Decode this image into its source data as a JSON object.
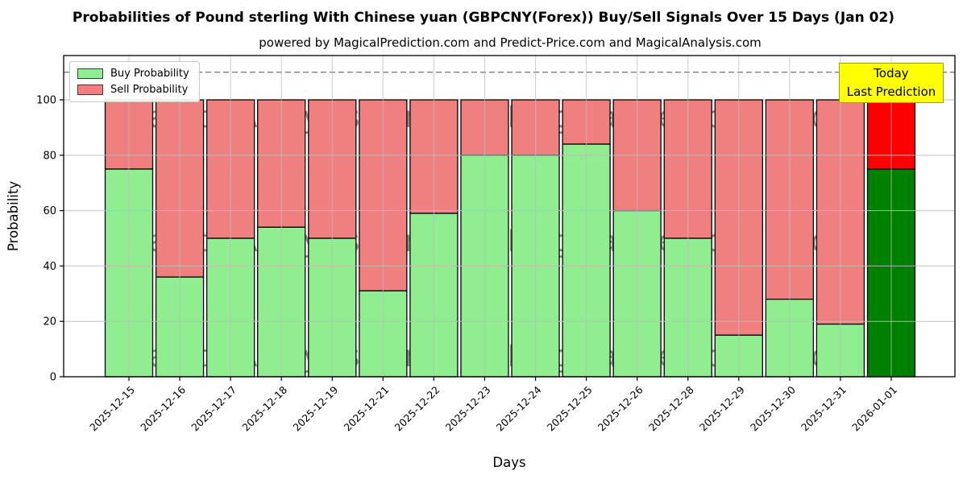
{
  "header": {
    "title": "Probabilities of Pound sterling With Chinese yuan (GBPCNY(Forex)) Buy/Sell Signals Over 15 Days (Jan 02)",
    "subtitle": "powered by MagicalPrediction.com and Predict-Price.com and MagicalAnalysis.com"
  },
  "legend": {
    "items": [
      {
        "label": "Buy Probability",
        "color": "#90ee90"
      },
      {
        "label": "Sell Probability",
        "color": "#f08080"
      }
    ]
  },
  "annotation": {
    "line1": "Today",
    "line2": "Last Prediction",
    "bg": "#ffff00",
    "border": "#ab9b00",
    "text_color": "#000000"
  },
  "watermarks": {
    "left_text": "MagicalAnalysis.com",
    "right_text": "MagicalPrediction.com",
    "rows": 3,
    "color": "#dfb8b8"
  },
  "chart_data": {
    "type": "bar",
    "stacked": true,
    "title": "Probabilities of Pound sterling With Chinese yuan (GBPCNY(Forex)) Buy/Sell Signals Over 15 Days (Jan 02)",
    "xlabel": "Days",
    "ylabel": "Probability",
    "ylim": [
      0,
      116
    ],
    "y_ticks": [
      0,
      20,
      40,
      60,
      80,
      100
    ],
    "dashed_line_y": 110,
    "grid": true,
    "legend_position": "upper left",
    "categories": [
      "2025-12-15",
      "2025-12-16",
      "2025-12-17",
      "2025-12-18",
      "2025-12-19",
      "2025-12-21",
      "2025-12-22",
      "2025-12-23",
      "2025-12-24",
      "2025-12-25",
      "2025-12-26",
      "2025-12-28",
      "2025-12-29",
      "2025-12-30",
      "2025-12-31",
      "2026-01-01"
    ],
    "series": [
      {
        "name": "Buy Probability",
        "color": "#90ee90",
        "values": [
          75,
          36,
          50,
          54,
          50,
          31,
          59,
          80,
          80,
          84,
          60,
          50,
          15,
          28,
          19,
          75
        ]
      },
      {
        "name": "Sell Probability",
        "color": "#f08080",
        "values": [
          25,
          64,
          50,
          46,
          50,
          69,
          41,
          20,
          20,
          16,
          40,
          50,
          85,
          72,
          81,
          25
        ]
      }
    ],
    "today_bar": {
      "index": 15,
      "buy_color": "#008000",
      "sell_color": "#ff0000"
    },
    "bar_edge_color": "#000000",
    "grid_color": "#bdbdbd",
    "dashed_line_color": "#808080"
  }
}
